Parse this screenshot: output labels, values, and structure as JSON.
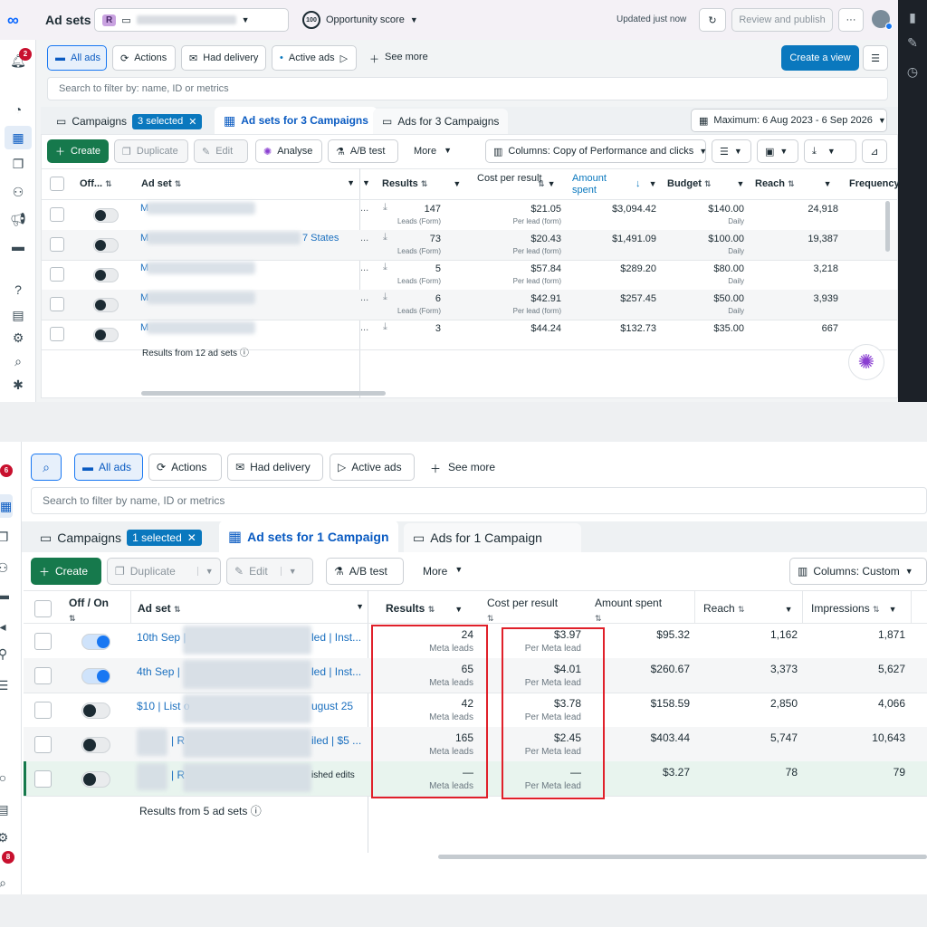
{
  "colors": {
    "accent": "#0a78be",
    "create_green": "#16794c",
    "highlight_red": "#e0202a",
    "link": "#1a6fbf"
  },
  "top": {
    "title": "Ad sets",
    "account_initial": "R",
    "opportunity_score": "100",
    "opportunity_label": "Opportunity score",
    "updated": "Updated just now",
    "review_publish": "Review and publish",
    "notif_count": "2",
    "views": [
      "All ads",
      "Actions",
      "Had delivery",
      "Active ads",
      "See more"
    ],
    "create_view": "Create a view",
    "filter_placeholder": "Search to filter by: name, ID or metrics",
    "tabs": {
      "campaigns": "Campaigns",
      "selected": "3 selected",
      "adsets": "Ad sets for 3 Campaigns",
      "ads": "Ads for 3 Campaigns"
    },
    "date_range": "Maximum: 6 Aug 2023 - 6 Sep 2026",
    "toolbar": {
      "create": "Create",
      "duplicate": "Duplicate",
      "edit": "Edit",
      "analyse": "Analyse",
      "abtest": "A/B test",
      "more": "More",
      "columns": "Columns: Copy of Performance and clicks"
    },
    "headers": {
      "off": "Off...",
      "adset": "Ad set",
      "results": "Results",
      "cpr": "Cost per result",
      "amount": "Amount spent",
      "budget": "Budget",
      "reach": "Reach",
      "frequency": "Frequency"
    },
    "rows": [
      {
        "name": "M",
        "suffix": "",
        "results": "147",
        "results_sub": "Leads (Form)",
        "cpr": "$21.05",
        "cpr_sub": "Per lead (form)",
        "amount": "$3,094.42",
        "budget": "$140.00",
        "budget_sub": "Daily",
        "reach": "24,918"
      },
      {
        "name": "M",
        "suffix": "7 States",
        "results": "73",
        "results_sub": "Leads (Form)",
        "cpr": "$20.43",
        "cpr_sub": "Per lead (form)",
        "amount": "$1,491.09",
        "budget": "$100.00",
        "budget_sub": "Daily",
        "reach": "19,387"
      },
      {
        "name": "M",
        "suffix": "",
        "results": "5",
        "results_sub": "Leads (Form)",
        "cpr": "$57.84",
        "cpr_sub": "Per lead (form)",
        "amount": "$289.20",
        "budget": "$80.00",
        "budget_sub": "Daily",
        "reach": "3,218"
      },
      {
        "name": "M",
        "suffix": "",
        "results": "6",
        "results_sub": "Leads (Form)",
        "cpr": "$42.91",
        "cpr_sub": "Per lead (form)",
        "amount": "$257.45",
        "budget": "$50.00",
        "budget_sub": "Daily",
        "reach": "3,939"
      },
      {
        "name": "M",
        "suffix": "",
        "results": "3",
        "results_sub": "",
        "cpr": "$44.24",
        "cpr_sub": "",
        "amount": "$132.73",
        "budget": "$35.00",
        "budget_sub": "",
        "reach": "667"
      }
    ],
    "footer": "Results from 12 ad sets"
  },
  "bottom": {
    "notif_top": "6",
    "notif_bottom": "8",
    "views": [
      "All ads",
      "Actions",
      "Had delivery",
      "Active ads",
      "See more"
    ],
    "filter_placeholder": "Search to filter by name, ID or metrics",
    "tabs": {
      "campaigns": "Campaigns",
      "selected": "1 selected",
      "adsets": "Ad sets for 1 Campaign",
      "ads": "Ads for 1 Campaign"
    },
    "toolbar": {
      "create": "Create",
      "duplicate": "Duplicate",
      "edit": "Edit",
      "abtest": "A/B test",
      "more": "More",
      "columns": "Columns: Custom"
    },
    "headers": {
      "off": "Off / On",
      "adset": "Ad set",
      "results": "Results",
      "cpr": "Cost per result",
      "amount": "Amount spent",
      "reach": "Reach",
      "impressions": "Impressions"
    },
    "rows": [
      {
        "prefix": "10th Sep |",
        "suffix": "led | Inst...",
        "on": true,
        "results": "24",
        "results_sub": "Meta leads",
        "cpr": "$3.97",
        "cpr_sub": "Per Meta lead",
        "amount": "$95.32",
        "reach": "1,162",
        "impressions": "1,871"
      },
      {
        "prefix": "4th Sep |",
        "suffix": "led | Inst...",
        "on": true,
        "results": "65",
        "results_sub": "Meta leads",
        "cpr": "$4.01",
        "cpr_sub": "Per Meta lead",
        "amount": "$260.67",
        "reach": "3,373",
        "impressions": "5,627"
      },
      {
        "prefix": "$10 | List o",
        "suffix": "ugust 25",
        "on": false,
        "results": "42",
        "results_sub": "Meta leads",
        "cpr": "$3.78",
        "cpr_sub": "Per Meta lead",
        "amount": "$158.59",
        "reach": "2,850",
        "impressions": "4,066"
      },
      {
        "prefix": "| R",
        "suffix": "iled | $5 ...",
        "on": false,
        "results": "165",
        "results_sub": "Meta leads",
        "cpr": "$2.45",
        "cpr_sub": "Per Meta lead",
        "amount": "$403.44",
        "reach": "5,747",
        "impressions": "10,643"
      },
      {
        "prefix": "| R",
        "suffix": "ished edits",
        "on": false,
        "results": "—",
        "results_sub": "Meta leads",
        "cpr": "—",
        "cpr_sub": "Per Meta lead",
        "amount": "$3.27",
        "reach": "78",
        "impressions": "79"
      }
    ],
    "footer": "Results from 5 ad sets"
  }
}
